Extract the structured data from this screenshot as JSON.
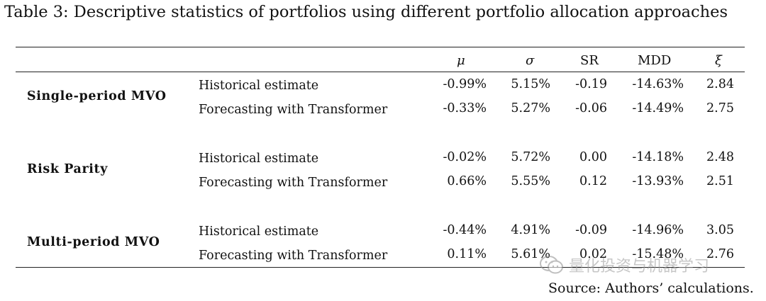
{
  "caption": "Table 3: Descriptive statistics of portfolios using different portfolio allocation approaches",
  "headers": {
    "mu": "μ",
    "sigma": "σ",
    "sr": "SR",
    "mdd": "MDD",
    "xi": "ξ"
  },
  "groups": [
    {
      "name": "Single-period MVO",
      "rows": [
        {
          "method": "Historical estimate",
          "mu": "-0.99%",
          "sigma": "5.15%",
          "sr": "-0.19",
          "mdd": "-14.63%",
          "xi": "2.84"
        },
        {
          "method": "Forecasting with Transformer",
          "mu": "-0.33%",
          "sigma": "5.27%",
          "sr": "-0.06",
          "mdd": "-14.49%",
          "xi": "2.75"
        }
      ]
    },
    {
      "name": "Risk Parity",
      "rows": [
        {
          "method": "Historical estimate",
          "mu": "-0.02%",
          "sigma": "5.72%",
          "sr": "0.00",
          "mdd": "-14.18%",
          "xi": "2.48"
        },
        {
          "method": "Forecasting with Transformer",
          "mu": "0.66%",
          "sigma": "5.55%",
          "sr": "0.12",
          "mdd": "-13.93%",
          "xi": "2.51"
        }
      ]
    },
    {
      "name": "Multi-period MVO",
      "rows": [
        {
          "method": "Historical estimate",
          "mu": "-0.44%",
          "sigma": "4.91%",
          "sr": "-0.09",
          "mdd": "-14.96%",
          "xi": "3.05"
        },
        {
          "method": "Forecasting with Transformer",
          "mu": "0.11%",
          "sigma": "5.61%",
          "sr": "0.02",
          "mdd": "-15.48%",
          "xi": "2.76"
        }
      ]
    }
  ],
  "source": "Source:  Authors’ calculations.",
  "watermark": {
    "text": "量化投资与机器学习",
    "icon": "wechat-icon"
  }
}
